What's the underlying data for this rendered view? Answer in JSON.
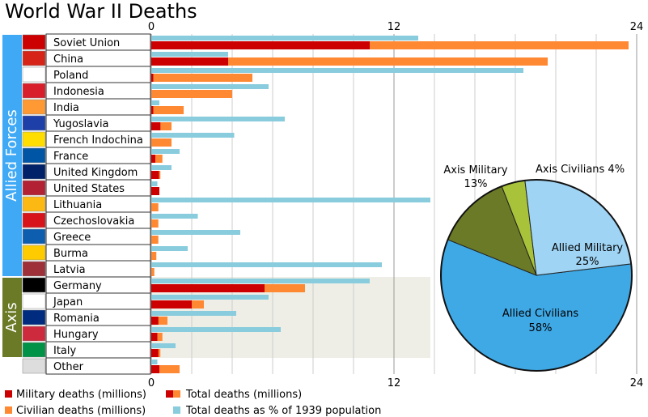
{
  "title": "World War II Deaths",
  "colors": {
    "military": "#cc0000",
    "civilian": "#ff8833",
    "percent": "#88ccdd",
    "allied_band": "#3fa9f5",
    "axis_band": "#6b7a26",
    "axis_shade": "#eeeee6",
    "pie_allied_civilians": "#3fa9e6",
    "pie_allied_military": "#9fd4f4",
    "pie_axis_military": "#6b7a26",
    "pie_axis_civilians": "#a8c33a"
  },
  "groups": [
    {
      "label": "Allied Forces",
      "from": 0,
      "to": 14
    },
    {
      "label": "Axis",
      "from": 15,
      "to": 19
    }
  ],
  "legend": {
    "military": "Military deaths (millions)",
    "total": "Total deaths (millions)",
    "civilian": "Civilian deaths (millions)",
    "percent": "Total deaths as % of 1939 population"
  },
  "chart_data": [
    {
      "type": "bar",
      "title": "World War II Deaths",
      "xlim": [
        0,
        24
      ],
      "ticks": [
        "0",
        "12",
        "24"
      ],
      "categories": [
        "Soviet Union",
        "China",
        "Poland",
        "Indonesia",
        "India",
        "Yugoslavia",
        "French Indochina",
        "France",
        "United Kingdom",
        "United States",
        "Lithuania",
        "Czechoslovakia",
        "Greece",
        "Burma",
        "Latvia",
        "Germany",
        "Japan",
        "Romania",
        "Hungary",
        "Italy",
        "Other"
      ],
      "series": [
        {
          "name": "Military deaths (millions)",
          "values": [
            10.8,
            3.8,
            0.1,
            0,
            0.1,
            0.45,
            0,
            0.2,
            0.38,
            0.4,
            0,
            0,
            0,
            0,
            0,
            5.6,
            2.0,
            0.35,
            0.3,
            0.35,
            0.4
          ]
        },
        {
          "name": "Total deaths (millions)",
          "values": [
            23.6,
            19.6,
            5.0,
            4.0,
            1.6,
            1.0,
            1.0,
            0.55,
            0.45,
            0.4,
            0.35,
            0.35,
            0.35,
            0.25,
            0.15,
            7.6,
            2.6,
            0.8,
            0.55,
            0.45,
            1.4
          ]
        },
        {
          "name": "Total deaths as % of 1939 population",
          "values": [
            13.2,
            3.8,
            18.4,
            5.8,
            0.4,
            6.6,
            4.1,
            1.4,
            1.0,
            0.3,
            13.8,
            2.3,
            4.4,
            1.8,
            11.4,
            10.8,
            5.8,
            4.2,
            6.4,
            1.2,
            0.3
          ]
        }
      ]
    },
    {
      "type": "pie",
      "slices": [
        {
          "name": "Allied Civilians",
          "label": "Allied Civilians",
          "pct": "58%",
          "value": 58
        },
        {
          "name": "Axis Military",
          "label": "Axis Military",
          "pct": "13%",
          "value": 13
        },
        {
          "name": "Axis Civilians",
          "label": "Axis Civilians",
          "pct": "4%",
          "value": 4
        },
        {
          "name": "Allied Military",
          "label": "Allied Military",
          "pct": "25%",
          "value": 25
        }
      ]
    }
  ]
}
